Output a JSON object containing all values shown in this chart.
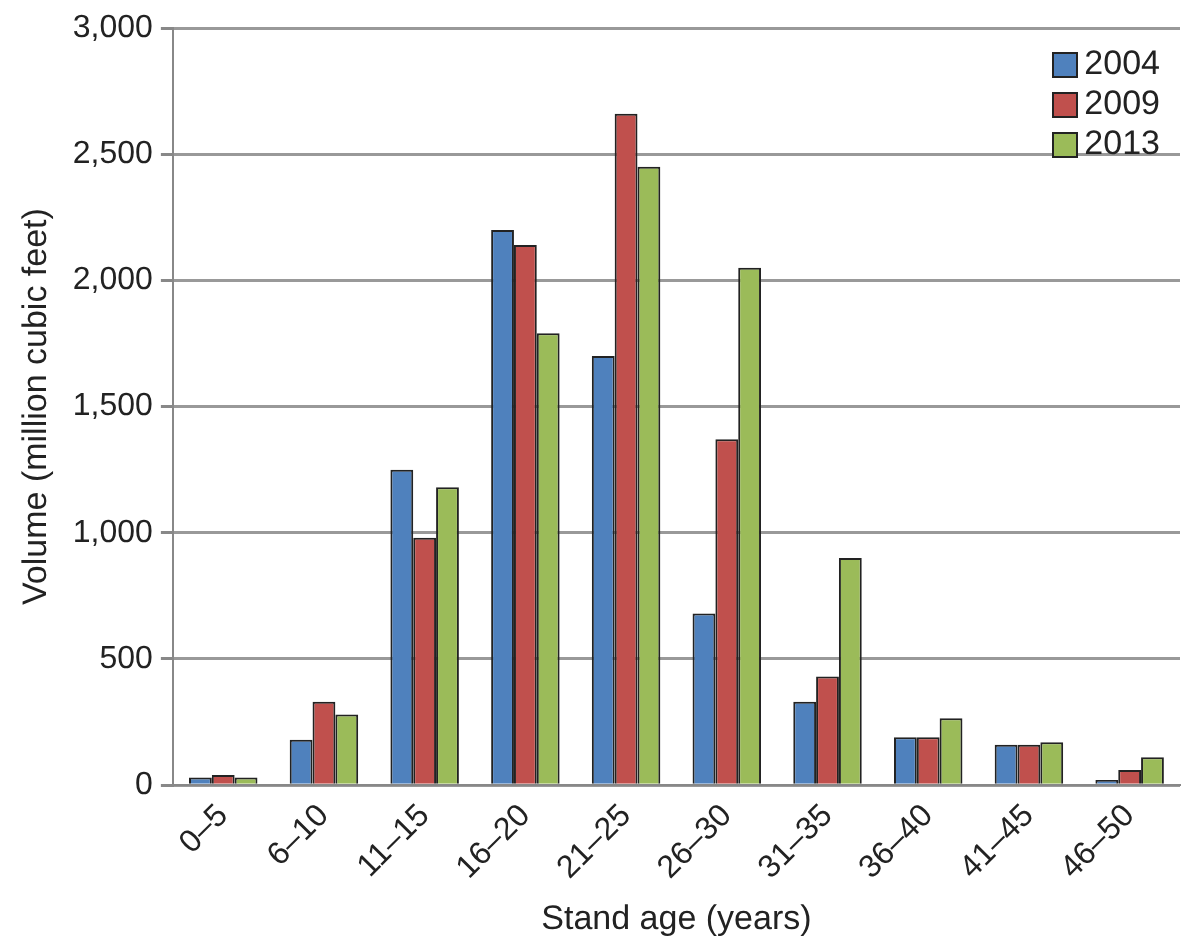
{
  "chart_data": {
    "type": "bar",
    "xlabel": "Stand age (years)",
    "ylabel": "Volume (million cubic feet)",
    "categories": [
      "0–5",
      "6–10",
      "11–15",
      "16–20",
      "21–25",
      "26–30",
      "31–35",
      "36–40",
      "41–45",
      "46–50"
    ],
    "series": [
      {
        "name": "2004",
        "color": "#4f81bd",
        "values": [
          30,
          180,
          1250,
          2200,
          1700,
          680,
          330,
          190,
          160,
          20
        ]
      },
      {
        "name": "2009",
        "color": "#c0504d",
        "values": [
          40,
          330,
          980,
          2140,
          2660,
          1370,
          430,
          190,
          160,
          60
        ]
      },
      {
        "name": "2013",
        "color": "#9bbb59",
        "values": [
          30,
          280,
          1180,
          1790,
          2450,
          2050,
          900,
          265,
          170,
          110
        ]
      }
    ],
    "ylim": [
      0,
      3000
    ],
    "yticks": [
      0,
      {
        "value": 500,
        "label": "500"
      },
      {
        "value": 1000,
        "label": "1,000"
      },
      {
        "value": 1500,
        "label": "1,500"
      },
      {
        "value": 2000,
        "label": "2,000"
      },
      {
        "value": 2500,
        "label": "2,500"
      },
      {
        "value": 3000,
        "label": "3,000"
      }
    ],
    "grid": "y",
    "legend": "top right"
  }
}
